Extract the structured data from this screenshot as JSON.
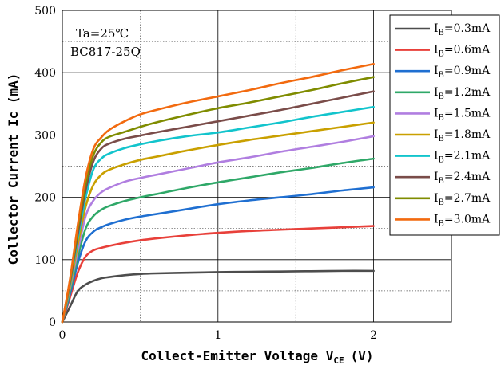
{
  "chart_data": {
    "type": "line",
    "title": "",
    "xlabel": "Collect-Emitter Voltage V",
    "xlabel_sub": "CE",
    "xlabel_unit": "(V)",
    "ylabel": "Collector  Current Ic (mA)",
    "xlim": [
      0,
      2.5
    ],
    "ylim": [
      0,
      500
    ],
    "xticks": [
      0,
      1,
      2
    ],
    "yticks": [
      0,
      100,
      200,
      300,
      400,
      500
    ],
    "grid": "solid at major ticks, dotted at half steps",
    "legend_position": "top-right",
    "annotations": [
      "Ta=25℃",
      "BC817-25Q"
    ],
    "x": [
      0,
      0.05,
      0.1,
      0.15,
      0.2,
      0.25,
      0.3,
      0.4,
      0.5,
      0.6,
      0.8,
      1.0,
      1.2,
      1.4,
      1.6,
      1.8,
      2.0
    ],
    "series": [
      {
        "label_main": "I",
        "label_sub": "B",
        "label_rest": "=0.3mA",
        "color": "#4d4d4d",
        "values": [
          0,
          25,
          50,
          60,
          66,
          70,
          72,
          75,
          77,
          78,
          79,
          80,
          80.5,
          81,
          81.5,
          82,
          82
        ]
      },
      {
        "label_main": "I",
        "label_sub": "B",
        "label_rest": "=0.6mA",
        "color": "#e8403a",
        "values": [
          0,
          40,
          80,
          105,
          115,
          119,
          122,
          127,
          131,
          134,
          139,
          143,
          146,
          148,
          150,
          152,
          154
        ]
      },
      {
        "label_main": "I",
        "label_sub": "B",
        "label_rest": "=0.9mA",
        "color": "#1f6fd1",
        "values": [
          0,
          45,
          95,
          130,
          145,
          152,
          157,
          164,
          169,
          173,
          181,
          189,
          195,
          200,
          205,
          211,
          216
        ]
      },
      {
        "label_main": "I",
        "label_sub": "B",
        "label_rest": "=1.2mA",
        "color": "#2fa868",
        "values": [
          0,
          50,
          105,
          150,
          170,
          180,
          186,
          194,
          200,
          205,
          215,
          224,
          232,
          240,
          247,
          255,
          262
        ]
      },
      {
        "label_main": "I",
        "label_sub": "B",
        "label_rest": "=1.5mA",
        "color": "#b07ee0",
        "values": [
          0,
          55,
          115,
          170,
          195,
          208,
          215,
          225,
          231,
          236,
          246,
          256,
          264,
          273,
          281,
          289,
          298
        ]
      },
      {
        "label_main": "I",
        "label_sub": "B",
        "label_rest": "=1.8mA",
        "color": "#c9a000",
        "values": [
          0,
          58,
          125,
          185,
          220,
          236,
          244,
          253,
          260,
          265,
          275,
          284,
          292,
          299,
          306,
          313,
          320
        ]
      },
      {
        "label_main": "I",
        "label_sub": "B",
        "label_rest": "=2.1mA",
        "color": "#12c4cc",
        "values": [
          0,
          62,
          135,
          200,
          245,
          262,
          270,
          279,
          285,
          290,
          298,
          304,
          312,
          320,
          329,
          337,
          345
        ]
      },
      {
        "label_main": "I",
        "label_sub": "B",
        "label_rest": "=2.4mA",
        "color": "#7a4c49",
        "values": [
          0,
          65,
          142,
          212,
          258,
          278,
          286,
          294,
          299,
          304,
          313,
          322,
          331,
          340,
          350,
          360,
          370
        ]
      },
      {
        "label_main": "I",
        "label_sub": "B",
        "label_rest": "=2.7mA",
        "color": "#7f8c00",
        "values": [
          0,
          68,
          150,
          222,
          268,
          288,
          297,
          305,
          313,
          320,
          332,
          343,
          352,
          362,
          372,
          383,
          393
        ]
      },
      {
        "label_main": "I",
        "label_sub": "B",
        "label_rest": "=3.0mA",
        "color": "#f26a0f",
        "values": [
          0,
          70,
          157,
          232,
          278,
          296,
          308,
          322,
          333,
          340,
          352,
          362,
          372,
          383,
          393,
          404,
          414
        ]
      }
    ]
  }
}
